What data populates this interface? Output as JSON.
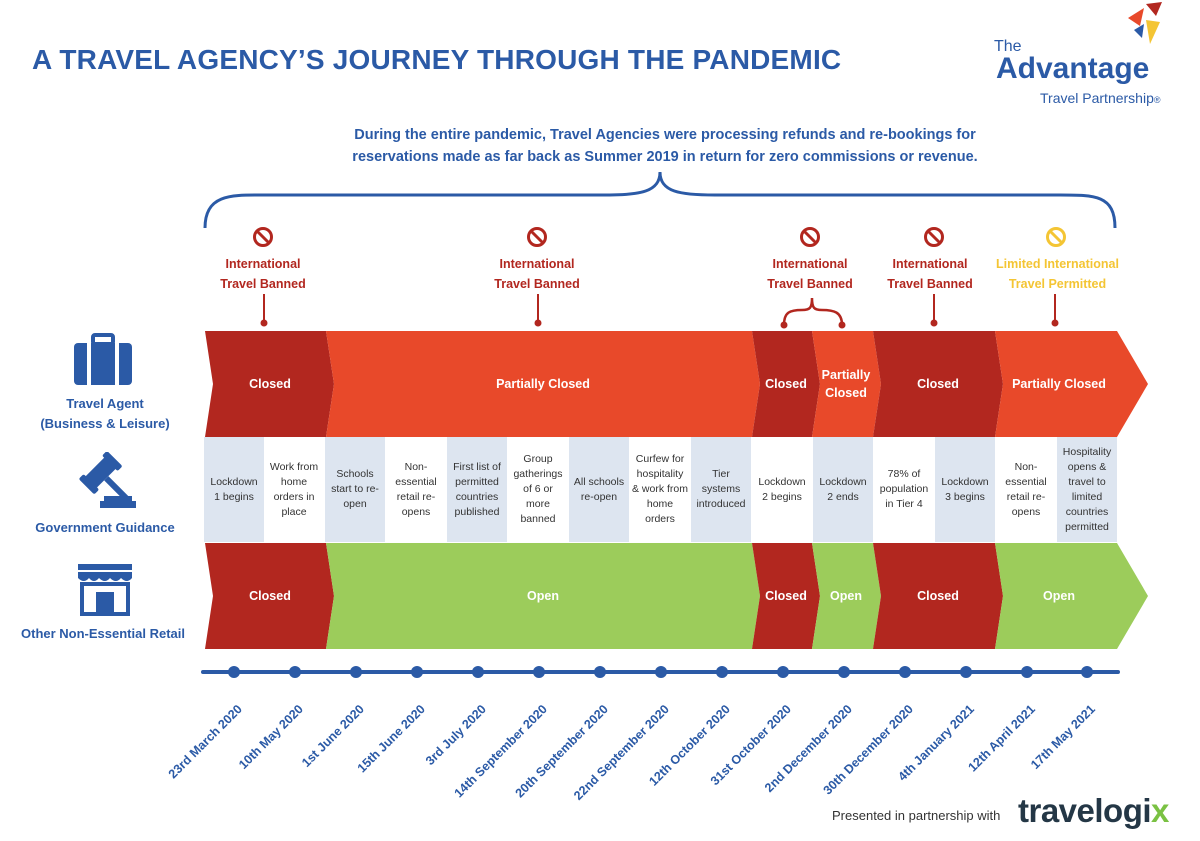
{
  "title": "A TRAVEL AGENCY’S JOURNEY THROUGH THE PANDEMIC",
  "logo": {
    "the": "The",
    "name": "Advantage",
    "tagline": "Travel Partnership",
    "reg": "®"
  },
  "subtitle_line1": "During the entire pandemic, Travel Agencies were processing refunds and re-bookings for",
  "subtitle_line2": "reservations made as far back as Summer 2019 in return for zero commissions or revenue.",
  "restrictions": [
    {
      "line1": "International",
      "line2": "Travel Banned",
      "status": "banned"
    },
    {
      "line1": "International",
      "line2": "Travel Banned",
      "status": "banned"
    },
    {
      "line1": "International",
      "line2": "Travel Banned",
      "status": "banned"
    },
    {
      "line1": "International",
      "line2": "Travel Banned",
      "status": "banned"
    },
    {
      "line1": "Limited International",
      "line2": "Travel Permitted",
      "status": "limited"
    }
  ],
  "row_labels": {
    "travel_line1": "Travel Agent",
    "travel_line2": "(Business & Leisure)",
    "government": "Government Guidance",
    "retail": "Other Non-Essential Retail"
  },
  "travel_agent_segments": [
    {
      "label": "Closed"
    },
    {
      "label": "Partially Closed"
    },
    {
      "label": "Closed"
    },
    {
      "label": "Partially Closed"
    },
    {
      "label": "Closed"
    },
    {
      "label": "Partially Closed"
    }
  ],
  "government_guidance": [
    "Lockdown 1 begins",
    "Work from home orders in place",
    "Schools start to re-open",
    "Non-essential retail re-opens",
    "First list of permitted countries published",
    "Group gatherings of 6 or more banned",
    "All schools re-open",
    "Curfew for hospitality & work from home orders",
    "Tier systems introduced",
    "Lockdown 2 begins",
    "Lockdown 2 ends",
    "78% of population in Tier 4",
    "Lockdown 3 begins",
    "Non-essential retail re-opens",
    "Hospitality opens & travel to limited countries permitted"
  ],
  "retail_segments": [
    {
      "label": "Closed"
    },
    {
      "label": "Open"
    },
    {
      "label": "Closed"
    },
    {
      "label": "Open"
    },
    {
      "label": "Closed"
    },
    {
      "label": "Open"
    }
  ],
  "dates": [
    "23rd March 2020",
    "10th May 2020",
    "1st June 2020",
    "15th June 2020",
    "3rd July 2020",
    "14th September 2020",
    "20th September 2020",
    "22nd September 2020",
    "12th October 2020",
    "31st October 2020",
    "2nd December 2020",
    "30th December 2020",
    "4th January 2021",
    "12th April 2021",
    "17th May 2021"
  ],
  "footer": {
    "presented": "Presented in partnership with",
    "brand_a": "travelogi",
    "brand_b": "x"
  },
  "colors": {
    "blue": "#2b5aa6",
    "closed": "#b2271f",
    "partial": "#e8492a",
    "open": "#9ccc5b",
    "limited": "#f4c534",
    "cell_shade": "#dde5f0"
  }
}
